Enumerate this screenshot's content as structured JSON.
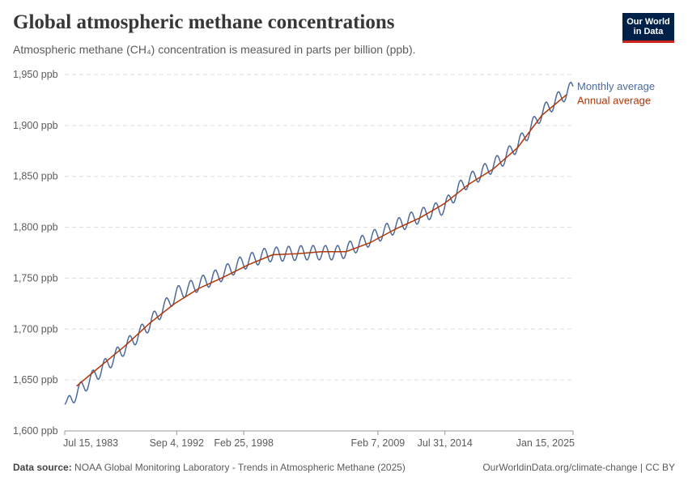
{
  "header": {
    "title": "Global atmospheric methane concentrations",
    "subtitle": "Atmospheric methane (CH₄) concentration is measured in parts per billion (ppb).",
    "logo_line1": "Our World",
    "logo_line2": "in Data"
  },
  "footer": {
    "source_label": "Data source:",
    "source_text": "NOAA Global Monitoring Laboratory - Trends in Atmospheric Methane (2025)",
    "right_text": "OurWorldinData.org/climate-change | CC BY"
  },
  "colors": {
    "monthly": "#4c6a9c",
    "annual": "#b13507",
    "grid": "#dddddd",
    "axis": "#666666"
  },
  "chart_data": {
    "type": "line",
    "x_axis": "date",
    "xlim": [
      "1983-07-15",
      "2025-01-15"
    ],
    "ylim": [
      1600,
      1950
    ],
    "y_ticks": [
      1600,
      1650,
      1700,
      1750,
      1800,
      1850,
      1900,
      1950
    ],
    "y_tick_labels": [
      "1,600 ppb",
      "1,650 ppb",
      "1,700 ppb",
      "1,750 ppb",
      "1,800 ppb",
      "1,850 ppb",
      "1,900 ppb",
      "1,950 ppb"
    ],
    "x_ticks": [
      {
        "date": "1983-07-15",
        "label": "Jul 15, 1983"
      },
      {
        "date": "1992-09-04",
        "label": "Sep 4, 1992"
      },
      {
        "date": "1998-02-25",
        "label": "Feb 25, 1998"
      },
      {
        "date": "2009-02-07",
        "label": "Feb 7, 2009"
      },
      {
        "date": "2014-07-31",
        "label": "Jul 31, 2014"
      },
      {
        "date": "2025-01-15",
        "label": "Jan 15, 2025"
      }
    ],
    "grid": "horizontal dashed",
    "legend": "right end labels",
    "series": [
      {
        "name": "Monthly average",
        "anchors": [
          {
            "date": "1983-07-15",
            "value": 1626
          },
          {
            "date": "1986-01-15",
            "value": 1655
          },
          {
            "date": "1990-01-15",
            "value": 1700
          },
          {
            "date": "1992-09-15",
            "value": 1735
          },
          {
            "date": "1996-01-15",
            "value": 1752
          },
          {
            "date": "1998-01-15",
            "value": 1765
          },
          {
            "date": "2000-01-15",
            "value": 1773
          },
          {
            "date": "2003-01-15",
            "value": 1775
          },
          {
            "date": "2006-01-15",
            "value": 1775
          },
          {
            "date": "2008-01-15",
            "value": 1786
          },
          {
            "date": "2010-01-15",
            "value": 1798
          },
          {
            "date": "2012-01-15",
            "value": 1809
          },
          {
            "date": "2014-07-15",
            "value": 1820
          },
          {
            "date": "2016-01-15",
            "value": 1842
          },
          {
            "date": "2018-01-15",
            "value": 1857
          },
          {
            "date": "2019-07-15",
            "value": 1869
          },
          {
            "date": "2021-01-15",
            "value": 1888
          },
          {
            "date": "2022-06-15",
            "value": 1912
          },
          {
            "date": "2024-01-15",
            "value": 1928
          },
          {
            "date": "2025-01-15",
            "value": 1937
          }
        ],
        "seasonal_amplitude": 8
      },
      {
        "name": "Annual average",
        "points": [
          {
            "date": "1984-07-01",
            "value": 1644
          },
          {
            "date": "1986-07-01",
            "value": 1664
          },
          {
            "date": "1988-07-01",
            "value": 1684
          },
          {
            "date": "1990-07-01",
            "value": 1706
          },
          {
            "date": "1992-07-01",
            "value": 1725
          },
          {
            "date": "1994-07-01",
            "value": 1740
          },
          {
            "date": "1996-07-01",
            "value": 1751
          },
          {
            "date": "1998-07-01",
            "value": 1763
          },
          {
            "date": "2000-07-01",
            "value": 1773
          },
          {
            "date": "2002-07-01",
            "value": 1774
          },
          {
            "date": "2004-07-01",
            "value": 1776
          },
          {
            "date": "2006-07-01",
            "value": 1776
          },
          {
            "date": "2008-07-01",
            "value": 1785
          },
          {
            "date": "2010-07-01",
            "value": 1798
          },
          {
            "date": "2012-07-01",
            "value": 1809
          },
          {
            "date": "2014-07-01",
            "value": 1823
          },
          {
            "date": "2016-07-01",
            "value": 1842
          },
          {
            "date": "2018-07-01",
            "value": 1857
          },
          {
            "date": "2020-07-01",
            "value": 1878
          },
          {
            "date": "2022-07-01",
            "value": 1910
          },
          {
            "date": "2024-07-01",
            "value": 1930
          }
        ]
      }
    ]
  }
}
